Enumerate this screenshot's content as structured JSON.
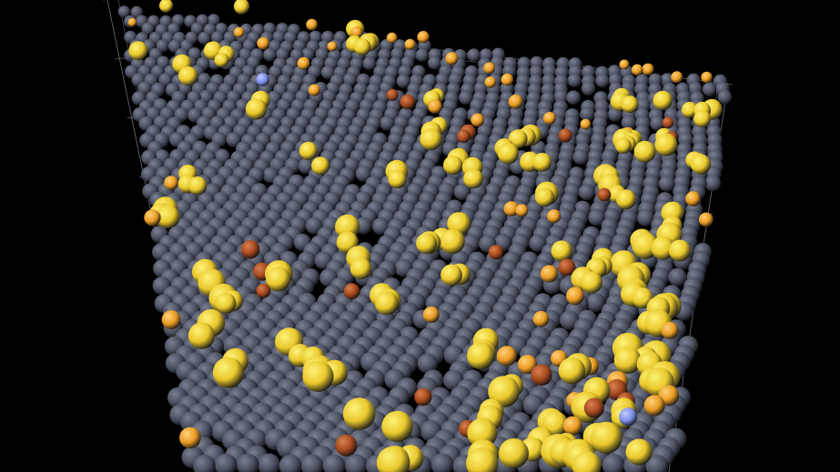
{
  "scene": {
    "kind": "atomistic-render",
    "background_color": "#000000",
    "frame_color": "#8a8f9e",
    "atom_types": [
      {
        "name": "type-1",
        "color": "#4b5060",
        "highlight": "#7a8092",
        "relative_radius": 1.0
      },
      {
        "name": "type-2",
        "color": "#e8c72a",
        "highlight": "#fff27a",
        "relative_radius": 1.15
      },
      {
        "name": "type-3",
        "color": "#e89a22",
        "highlight": "#ffd27a",
        "relative_radius": 0.8
      },
      {
        "name": "type-4",
        "color": "#a3461c",
        "highlight": "#d98252",
        "relative_radius": 0.85
      },
      {
        "name": "type-5",
        "color": "#7d8fe8",
        "highlight": "#c2ccff",
        "relative_radius": 0.85
      }
    ]
  }
}
